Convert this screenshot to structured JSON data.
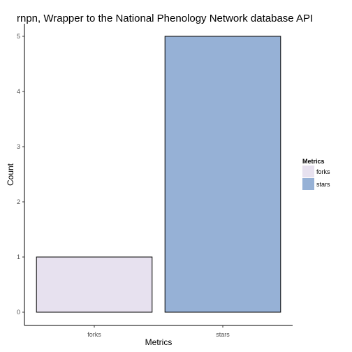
{
  "chart_data": {
    "type": "bar",
    "title": "rnpn, Wrapper to the National Phenology Network database API",
    "xlabel": "Metrics",
    "ylabel": "Count",
    "categories": [
      "forks",
      "stars"
    ],
    "values": [
      1,
      5
    ],
    "colors": [
      "#e7e1ef",
      "#96b1d6"
    ],
    "ylim": [
      0,
      5
    ],
    "yticks": [
      0,
      1,
      2,
      3,
      4,
      5
    ],
    "grid": false,
    "legend": {
      "title": "Metrics",
      "placement": "right",
      "items": [
        "forks",
        "stars"
      ]
    }
  }
}
